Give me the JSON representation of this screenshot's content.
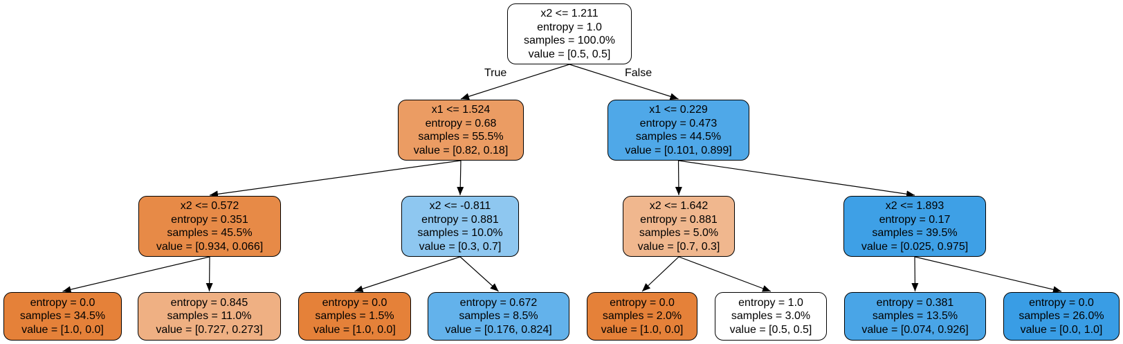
{
  "edge_labels": {
    "true_label": "True",
    "false_label": "False"
  },
  "nodes": {
    "root": {
      "lines": [
        "x2 <= 1.211",
        "entropy = 1.0",
        "samples = 100.0%",
        "value = [0.5, 0.5]"
      ],
      "fill": "#ffffff"
    },
    "L": {
      "lines": [
        "x1 <= 1.524",
        "entropy = 0.68",
        "samples = 55.5%",
        "value = [0.82, 0.18]"
      ],
      "fill": "#eb9c63"
    },
    "R": {
      "lines": [
        "x1 <= 0.229",
        "entropy = 0.473",
        "samples = 44.5%",
        "value = [0.101, 0.899]"
      ],
      "fill": "#4fa8e8"
    },
    "LL": {
      "lines": [
        "x2 <= 0.572",
        "entropy = 0.351",
        "samples = 45.5%",
        "value = [0.934, 0.066]"
      ],
      "fill": "#e78a47"
    },
    "LR": {
      "lines": [
        "x2 <= -0.811",
        "entropy = 0.881",
        "samples = 10.0%",
        "value = [0.3, 0.7]"
      ],
      "fill": "#8ec7f0"
    },
    "RL": {
      "lines": [
        "x2 <= 1.642",
        "entropy = 0.881",
        "samples = 5.0%",
        "value = [0.7, 0.3]"
      ],
      "fill": "#f0b78e"
    },
    "RR": {
      "lines": [
        "x2 <= 1.893",
        "entropy = 0.17",
        "samples = 39.5%",
        "value = [0.025, 0.975]"
      ],
      "fill": "#3ea0e6"
    },
    "LLL": {
      "lines": [
        "entropy = 0.0",
        "samples = 34.5%",
        "value = [1.0, 0.0]"
      ],
      "fill": "#e58139"
    },
    "LLR": {
      "lines": [
        "entropy = 0.845",
        "samples = 11.0%",
        "value = [0.727, 0.273]"
      ],
      "fill": "#efb083"
    },
    "LRL": {
      "lines": [
        "entropy = 0.0",
        "samples = 1.5%",
        "value = [1.0, 0.0]"
      ],
      "fill": "#e58139"
    },
    "LRR": {
      "lines": [
        "entropy = 0.672",
        "samples = 8.5%",
        "value = [0.176, 0.824]"
      ],
      "fill": "#63b2eb"
    },
    "RLL": {
      "lines": [
        "entropy = 0.0",
        "samples = 2.0%",
        "value = [1.0, 0.0]"
      ],
      "fill": "#e58139"
    },
    "RLR": {
      "lines": [
        "entropy = 1.0",
        "samples = 3.0%",
        "value = [0.5, 0.5]"
      ],
      "fill": "#ffffff"
    },
    "RRL": {
      "lines": [
        "entropy = 0.381",
        "samples = 13.5%",
        "value = [0.074, 0.926]"
      ],
      "fill": "#49a5e7"
    },
    "RRR": {
      "lines": [
        "entropy = 0.0",
        "samples = 26.0%",
        "value = [0.0, 1.0]"
      ],
      "fill": "#399de5"
    }
  },
  "edges": [
    [
      "root",
      "L"
    ],
    [
      "root",
      "R"
    ],
    [
      "L",
      "LL"
    ],
    [
      "L",
      "LR"
    ],
    [
      "R",
      "RL"
    ],
    [
      "R",
      "RR"
    ],
    [
      "LL",
      "LLL"
    ],
    [
      "LL",
      "LLR"
    ],
    [
      "LR",
      "LRL"
    ],
    [
      "LR",
      "LRR"
    ],
    [
      "RL",
      "RLL"
    ],
    [
      "RL",
      "RLR"
    ],
    [
      "RR",
      "RRL"
    ],
    [
      "RR",
      "RRR"
    ]
  ]
}
